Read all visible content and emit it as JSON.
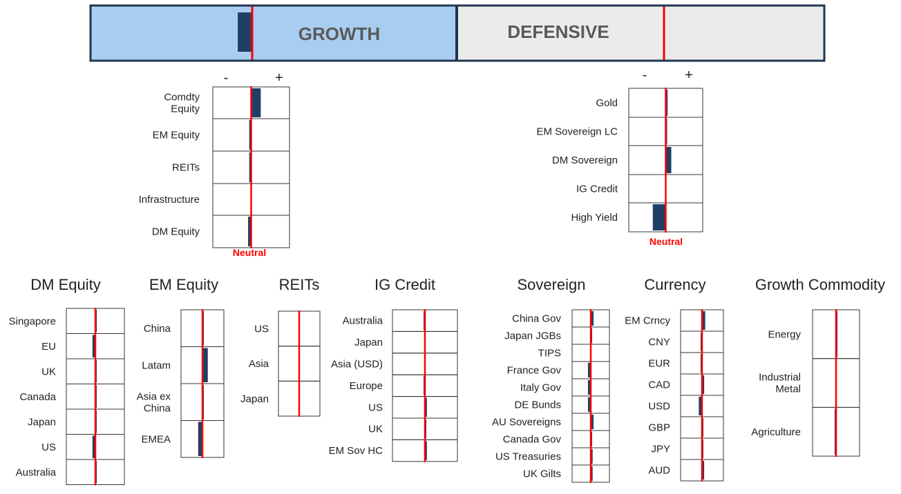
{
  "colors": {
    "bar": "#1f3f66",
    "neutral": "#ff0000",
    "growth_fill": "#a9cdf0",
    "defensive_fill": "#ebebeb",
    "frame": "#1f3550"
  },
  "header": {
    "growth_label": "GROWTH",
    "defensive_label": "DEFENSIVE",
    "growth_tilt": -0.08
  },
  "scale": {
    "minus": "-",
    "plus": "+",
    "neutral_label": "Neutral"
  },
  "chart_data": [
    {
      "type": "bar",
      "id": "growth",
      "xlim": [
        -1,
        1
      ],
      "categories": [
        "Comdty\nEquity",
        "EM Equity",
        "REITs",
        "Infrastructure",
        "DM Equity"
      ],
      "values": [
        0.25,
        -0.05,
        -0.05,
        0,
        -0.08
      ]
    },
    {
      "type": "bar",
      "id": "defensive",
      "xlim": [
        -1,
        1
      ],
      "categories": [
        "Gold",
        "EM Sovereign LC",
        "DM Sovereign",
        "IG Credit",
        "High Yield"
      ],
      "values": [
        0.05,
        0.03,
        0.15,
        0,
        -0.35
      ]
    },
    {
      "type": "bar",
      "id": "dm-equity",
      "title": "DM Equity",
      "xlim": [
        -1,
        1
      ],
      "categories": [
        "Singapore",
        "EU",
        "UK",
        "Canada",
        "Japan",
        "US",
        "Australia"
      ],
      "values": [
        0.05,
        -0.1,
        0.03,
        0.03,
        0.03,
        -0.1,
        0.05
      ]
    },
    {
      "type": "bar",
      "id": "em-equity",
      "title": "EM Equity",
      "xlim": [
        -1,
        1
      ],
      "categories": [
        "China",
        "Latam",
        "Asia ex\nChina",
        "EMEA"
      ],
      "values": [
        0.03,
        0.25,
        0.03,
        -0.2
      ]
    },
    {
      "type": "bar",
      "id": "reits",
      "title": "REITs",
      "xlim": [
        -1,
        1
      ],
      "categories": [
        "US",
        "Asia",
        "Japan"
      ],
      "values": [
        0,
        0,
        0
      ]
    },
    {
      "type": "bar",
      "id": "ig-credit",
      "title": "IG Credit",
      "xlim": [
        -1,
        1
      ],
      "categories": [
        "Australia",
        "Japan",
        "Asia (USD)",
        "Europe",
        "US",
        "UK",
        "EM Sov HC"
      ],
      "values": [
        -0.04,
        0,
        0,
        -0.04,
        0.06,
        0.03,
        0.06
      ]
    },
    {
      "type": "bar",
      "id": "sovereign",
      "title": "Sovereign",
      "xlim": [
        -1,
        1
      ],
      "categories": [
        "China Gov",
        "Japan JGBs",
        "TIPS",
        "France Gov",
        "Italy Gov",
        "DE Bunds",
        "AU Sovereigns",
        "Canada Gov",
        "US Treasuries",
        "UK Gilts"
      ],
      "values": [
        0.15,
        0.03,
        0,
        -0.15,
        -0.15,
        -0.15,
        0.15,
        0.03,
        0.1,
        0.1
      ]
    },
    {
      "type": "bar",
      "id": "currency",
      "title": "Currency",
      "xlim": [
        -1,
        1
      ],
      "categories": [
        "EM Crncy",
        "CNY",
        "EUR",
        "CAD",
        "USD",
        "GBP",
        "JPY",
        "AUD"
      ],
      "values": [
        0.15,
        -0.06,
        -0.06,
        0.1,
        -0.15,
        0.06,
        0.06,
        0.1
      ]
    },
    {
      "type": "bar",
      "id": "growth-commodity",
      "title": "Growth Commodity",
      "xlim": [
        -1,
        1
      ],
      "categories": [
        "Energy",
        "Industrial\nMetal",
        "Agriculture"
      ],
      "values": [
        0.05,
        0,
        -0.06
      ]
    }
  ]
}
